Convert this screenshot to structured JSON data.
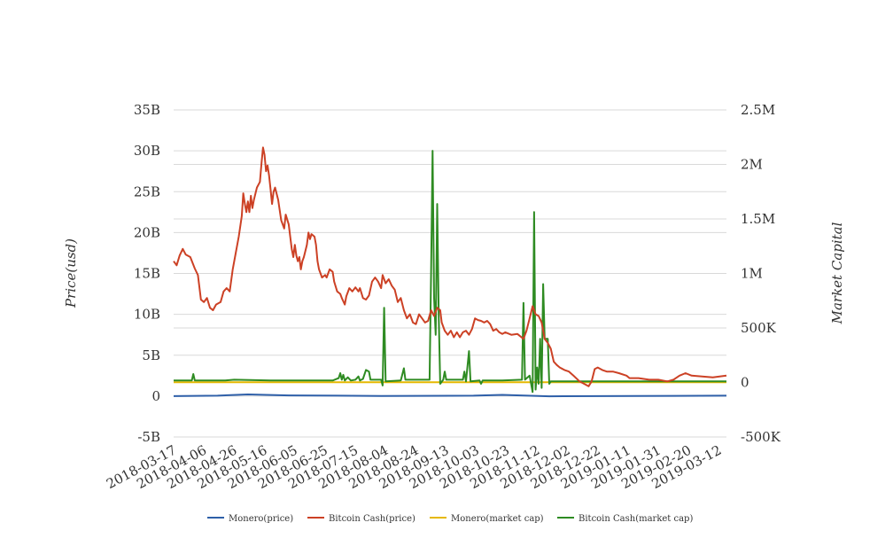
{
  "chart_data": {
    "type": "line",
    "title": "",
    "x_axis": {
      "tick_labels": [
        "2018-03-17",
        "2018-04-06",
        "2018-04-26",
        "2018-05-16",
        "2018-06-05",
        "2018-06-25",
        "2018-07-15",
        "2018-08-04",
        "2018-08-24",
        "2018-09-13",
        "2018-10-03",
        "2018-10-23",
        "2018-11-12",
        "2018-12-02",
        "2018-12-22",
        "2019-01-11",
        "2019-01-31",
        "2019-02-20",
        "2019-03-12"
      ],
      "range": [
        "2018-03-17",
        "2019-03-17"
      ]
    },
    "y_left": {
      "label": "Price(usd)",
      "tick_labels": [
        "-5B",
        "0",
        "5B",
        "10B",
        "15B",
        "20B",
        "25B",
        "30B",
        "35B"
      ],
      "range": [
        -5000000000,
        35000000000
      ],
      "ticks": [
        -5000000000,
        0,
        5000000000,
        10000000000,
        15000000000,
        20000000000,
        25000000000,
        30000000000,
        35000000000
      ]
    },
    "y_right": {
      "label": "Market Capital",
      "tick_labels": [
        "-500K",
        "0",
        "500K",
        "1M",
        "1.5M",
        "2M",
        "2.5M"
      ],
      "range": [
        -500000,
        2500000
      ],
      "ticks": [
        -500000,
        0,
        500000,
        1000000,
        1500000,
        2000000,
        2500000
      ]
    },
    "grid": true,
    "legend_position": "bottom",
    "series": [
      {
        "name": "Monero(price)",
        "axis": "left",
        "color": "#2e5fa8",
        "points": [
          [
            "2018-03-17",
            0.0
          ],
          [
            "2018-04-15",
            0.05
          ],
          [
            "2018-05-05",
            0.2
          ],
          [
            "2018-06-01",
            0.08
          ],
          [
            "2018-08-01",
            0.02
          ],
          [
            "2018-10-01",
            0.05
          ],
          [
            "2018-10-20",
            0.15
          ],
          [
            "2018-11-20",
            -0.02
          ],
          [
            "2019-01-15",
            0.02
          ],
          [
            "2019-03-17",
            0.05
          ]
        ]
      },
      {
        "name": "Bitcoin Cash(price)",
        "axis": "left",
        "color": "#cc4125",
        "points": [
          [
            "2018-03-17",
            16.5
          ],
          [
            "2018-03-19",
            16.0
          ],
          [
            "2018-03-21",
            17.2
          ],
          [
            "2018-03-23",
            18.0
          ],
          [
            "2018-03-25",
            17.3
          ],
          [
            "2018-03-28",
            17.0
          ],
          [
            "2018-03-31",
            15.6
          ],
          [
            "2018-04-02",
            14.8
          ],
          [
            "2018-04-04",
            11.8
          ],
          [
            "2018-04-06",
            11.5
          ],
          [
            "2018-04-08",
            12.0
          ],
          [
            "2018-04-10",
            10.8
          ],
          [
            "2018-04-12",
            10.5
          ],
          [
            "2018-04-14",
            11.2
          ],
          [
            "2018-04-17",
            11.5
          ],
          [
            "2018-04-19",
            12.8
          ],
          [
            "2018-04-21",
            13.2
          ],
          [
            "2018-04-23",
            12.8
          ],
          [
            "2018-04-25",
            15.5
          ],
          [
            "2018-04-27",
            17.5
          ],
          [
            "2018-04-29",
            19.5
          ],
          [
            "2018-05-01",
            22.0
          ],
          [
            "2018-05-02",
            24.8
          ],
          [
            "2018-05-03",
            23.5
          ],
          [
            "2018-05-04",
            22.5
          ],
          [
            "2018-05-05",
            23.8
          ],
          [
            "2018-05-06",
            22.5
          ],
          [
            "2018-05-07",
            24.5
          ],
          [
            "2018-05-08",
            23.0
          ],
          [
            "2018-05-09",
            24.0
          ],
          [
            "2018-05-11",
            25.5
          ],
          [
            "2018-05-13",
            26.2
          ],
          [
            "2018-05-14",
            28.5
          ],
          [
            "2018-05-15",
            30.4
          ],
          [
            "2018-05-16",
            29.5
          ],
          [
            "2018-05-17",
            27.5
          ],
          [
            "2018-05-18",
            28.2
          ],
          [
            "2018-05-19",
            27.0
          ],
          [
            "2018-05-20",
            25.3
          ],
          [
            "2018-05-21",
            23.5
          ],
          [
            "2018-05-22",
            25.0
          ],
          [
            "2018-05-23",
            25.5
          ],
          [
            "2018-05-25",
            24.0
          ],
          [
            "2018-05-27",
            21.5
          ],
          [
            "2018-05-29",
            20.5
          ],
          [
            "2018-05-30",
            22.2
          ],
          [
            "2018-06-01",
            21.0
          ],
          [
            "2018-06-03",
            18.0
          ],
          [
            "2018-06-04",
            17.0
          ],
          [
            "2018-06-05",
            18.5
          ],
          [
            "2018-06-06",
            17.2
          ],
          [
            "2018-06-07",
            16.5
          ],
          [
            "2018-06-08",
            17.0
          ],
          [
            "2018-06-09",
            15.5
          ],
          [
            "2018-06-10",
            16.5
          ],
          [
            "2018-06-11",
            17.0
          ],
          [
            "2018-06-13",
            18.5
          ],
          [
            "2018-06-14",
            20.0
          ],
          [
            "2018-06-15",
            19.2
          ],
          [
            "2018-06-16",
            19.8
          ],
          [
            "2018-06-18",
            19.5
          ],
          [
            "2018-06-19",
            18.5
          ],
          [
            "2018-06-20",
            16.5
          ],
          [
            "2018-06-21",
            15.5
          ],
          [
            "2018-06-23",
            14.5
          ],
          [
            "2018-06-25",
            14.8
          ],
          [
            "2018-06-26",
            14.5
          ],
          [
            "2018-06-28",
            15.5
          ],
          [
            "2018-06-30",
            15.2
          ],
          [
            "2018-07-01",
            14.0
          ],
          [
            "2018-07-03",
            12.8
          ],
          [
            "2018-07-05",
            12.5
          ],
          [
            "2018-07-06",
            12.0
          ],
          [
            "2018-07-08",
            11.2
          ],
          [
            "2018-07-09",
            12.2
          ],
          [
            "2018-07-11",
            13.2
          ],
          [
            "2018-07-13",
            12.8
          ],
          [
            "2018-07-15",
            13.3
          ],
          [
            "2018-07-17",
            12.8
          ],
          [
            "2018-07-18",
            13.2
          ],
          [
            "2018-07-20",
            12.0
          ],
          [
            "2018-07-22",
            11.8
          ],
          [
            "2018-07-24",
            12.3
          ],
          [
            "2018-07-26",
            14.0
          ],
          [
            "2018-07-28",
            14.5
          ],
          [
            "2018-07-30",
            14.0
          ],
          [
            "2018-08-01",
            13.2
          ],
          [
            "2018-08-02",
            14.8
          ],
          [
            "2018-08-04",
            13.8
          ],
          [
            "2018-08-06",
            14.3
          ],
          [
            "2018-08-08",
            13.5
          ],
          [
            "2018-08-10",
            13.0
          ],
          [
            "2018-08-12",
            11.5
          ],
          [
            "2018-08-14",
            12.0
          ],
          [
            "2018-08-16",
            10.5
          ],
          [
            "2018-08-18",
            9.5
          ],
          [
            "2018-08-20",
            10.0
          ],
          [
            "2018-08-22",
            9.0
          ],
          [
            "2018-08-24",
            8.8
          ],
          [
            "2018-08-26",
            10.0
          ],
          [
            "2018-08-28",
            9.5
          ],
          [
            "2018-08-30",
            9.0
          ],
          [
            "2018-09-01",
            9.2
          ],
          [
            "2018-09-03",
            10.5
          ],
          [
            "2018-09-05",
            9.8
          ],
          [
            "2018-09-07",
            10.8
          ],
          [
            "2018-09-09",
            10.5
          ],
          [
            "2018-09-10",
            9.0
          ],
          [
            "2018-09-12",
            8.0
          ],
          [
            "2018-09-14",
            7.5
          ],
          [
            "2018-09-16",
            8.0
          ],
          [
            "2018-09-18",
            7.2
          ],
          [
            "2018-09-20",
            7.8
          ],
          [
            "2018-09-22",
            7.2
          ],
          [
            "2018-09-24",
            7.8
          ],
          [
            "2018-09-26",
            8.0
          ],
          [
            "2018-09-28",
            7.5
          ],
          [
            "2018-09-30",
            8.2
          ],
          [
            "2018-10-02",
            9.5
          ],
          [
            "2018-10-04",
            9.3
          ],
          [
            "2018-10-06",
            9.2
          ],
          [
            "2018-10-08",
            9.0
          ],
          [
            "2018-10-10",
            9.2
          ],
          [
            "2018-10-12",
            8.8
          ],
          [
            "2018-10-14",
            8.0
          ],
          [
            "2018-10-16",
            8.2
          ],
          [
            "2018-10-18",
            7.8
          ],
          [
            "2018-10-20",
            7.6
          ],
          [
            "2018-10-22",
            7.8
          ],
          [
            "2018-10-26",
            7.5
          ],
          [
            "2018-10-30",
            7.6
          ],
          [
            "2018-11-03",
            7.0
          ],
          [
            "2018-11-05",
            8.0
          ],
          [
            "2018-11-07",
            9.5
          ],
          [
            "2018-11-09",
            11.0
          ],
          [
            "2018-11-11",
            10.0
          ],
          [
            "2018-11-13",
            9.8
          ],
          [
            "2018-11-15",
            9.0
          ],
          [
            "2018-11-17",
            7.0
          ],
          [
            "2018-11-19",
            6.5
          ],
          [
            "2018-11-21",
            5.8
          ],
          [
            "2018-11-23",
            4.2
          ],
          [
            "2018-11-25",
            3.8
          ],
          [
            "2018-11-27",
            3.5
          ],
          [
            "2018-11-30",
            3.2
          ],
          [
            "2018-12-03",
            3.0
          ],
          [
            "2018-12-06",
            2.5
          ],
          [
            "2018-12-10",
            1.8
          ],
          [
            "2018-12-13",
            1.5
          ],
          [
            "2018-12-16",
            1.2
          ],
          [
            "2018-12-18",
            1.8
          ],
          [
            "2018-12-20",
            3.3
          ],
          [
            "2018-12-22",
            3.5
          ],
          [
            "2018-12-25",
            3.2
          ],
          [
            "2018-12-28",
            3.0
          ],
          [
            "2019-01-01",
            3.0
          ],
          [
            "2019-01-05",
            2.8
          ],
          [
            "2019-01-10",
            2.5
          ],
          [
            "2019-01-12",
            2.2
          ],
          [
            "2019-01-18",
            2.2
          ],
          [
            "2019-01-25",
            2.0
          ],
          [
            "2019-01-31",
            2.0
          ],
          [
            "2019-02-06",
            1.8
          ],
          [
            "2019-02-10",
            2.0
          ],
          [
            "2019-02-14",
            2.5
          ],
          [
            "2019-02-18",
            2.8
          ],
          [
            "2019-02-22",
            2.5
          ],
          [
            "2019-03-01",
            2.4
          ],
          [
            "2019-03-08",
            2.3
          ],
          [
            "2019-03-17",
            2.5
          ]
        ]
      },
      {
        "name": "Monero(market cap)",
        "axis": "left",
        "color": "#e6b800",
        "points": [
          [
            "2018-03-17",
            1.7
          ],
          [
            "2019-03-17",
            1.7
          ]
        ]
      },
      {
        "name": "Bitcoin Cash(market cap)",
        "axis": "left",
        "color": "#2e8b22",
        "points": [
          [
            "2018-03-17",
            1.9
          ],
          [
            "2018-03-29",
            1.9
          ],
          [
            "2018-03-30",
            2.7
          ],
          [
            "2018-03-31",
            1.9
          ],
          [
            "2018-04-20",
            1.9
          ],
          [
            "2018-04-26",
            2.0
          ],
          [
            "2018-05-20",
            1.9
          ],
          [
            "2018-06-30",
            1.9
          ],
          [
            "2018-07-04",
            2.2
          ],
          [
            "2018-07-05",
            2.8
          ],
          [
            "2018-07-06",
            2.0
          ],
          [
            "2018-07-07",
            2.6
          ],
          [
            "2018-07-08",
            1.9
          ],
          [
            "2018-07-10",
            2.3
          ],
          [
            "2018-07-12",
            1.9
          ],
          [
            "2018-07-15",
            2.0
          ],
          [
            "2018-07-17",
            2.4
          ],
          [
            "2018-07-18",
            1.9
          ],
          [
            "2018-07-20",
            2.1
          ],
          [
            "2018-07-22",
            3.2
          ],
          [
            "2018-07-24",
            3.0
          ],
          [
            "2018-07-25",
            2.0
          ],
          [
            "2018-08-01",
            2.0
          ],
          [
            "2018-08-02",
            1.3
          ],
          [
            "2018-08-03",
            10.8
          ],
          [
            "2018-08-04",
            1.8
          ],
          [
            "2018-08-14",
            1.9
          ],
          [
            "2018-08-16",
            3.4
          ],
          [
            "2018-08-17",
            2.0
          ],
          [
            "2018-09-02",
            2.0
          ],
          [
            "2018-09-03",
            15.0
          ],
          [
            "2018-09-04",
            30.0
          ],
          [
            "2018-09-05",
            12.0
          ],
          [
            "2018-09-06",
            7.5
          ],
          [
            "2018-09-07",
            23.5
          ],
          [
            "2018-09-08",
            10.0
          ],
          [
            "2018-09-09",
            1.5
          ],
          [
            "2018-09-11",
            2.0
          ],
          [
            "2018-09-12",
            3.0
          ],
          [
            "2018-09-13",
            2.0
          ],
          [
            "2018-09-24",
            2.0
          ],
          [
            "2018-09-25",
            3.0
          ],
          [
            "2018-09-26",
            1.8
          ],
          [
            "2018-09-28",
            5.5
          ],
          [
            "2018-09-29",
            1.8
          ],
          [
            "2018-10-05",
            1.9
          ],
          [
            "2018-10-06",
            1.5
          ],
          [
            "2018-10-07",
            1.9
          ],
          [
            "2018-10-20",
            1.9
          ],
          [
            "2018-11-02",
            2.0
          ],
          [
            "2018-11-03",
            11.4
          ],
          [
            "2018-11-04",
            2.0
          ],
          [
            "2018-11-07",
            2.5
          ],
          [
            "2018-11-08",
            1.5
          ],
          [
            "2018-11-09",
            0.5
          ],
          [
            "2018-11-10",
            22.5
          ],
          [
            "2018-11-11",
            0.8
          ],
          [
            "2018-11-12",
            3.5
          ],
          [
            "2018-11-13",
            1.5
          ],
          [
            "2018-11-14",
            7.0
          ],
          [
            "2018-11-15",
            1.0
          ],
          [
            "2018-11-16",
            13.7
          ],
          [
            "2018-11-17",
            7.0
          ],
          [
            "2018-11-19",
            7.0
          ],
          [
            "2018-11-20",
            1.5
          ],
          [
            "2018-11-21",
            1.8
          ],
          [
            "2018-12-02",
            1.8
          ],
          [
            "2019-01-31",
            1.8
          ],
          [
            "2019-03-17",
            1.8
          ]
        ]
      }
    ]
  }
}
